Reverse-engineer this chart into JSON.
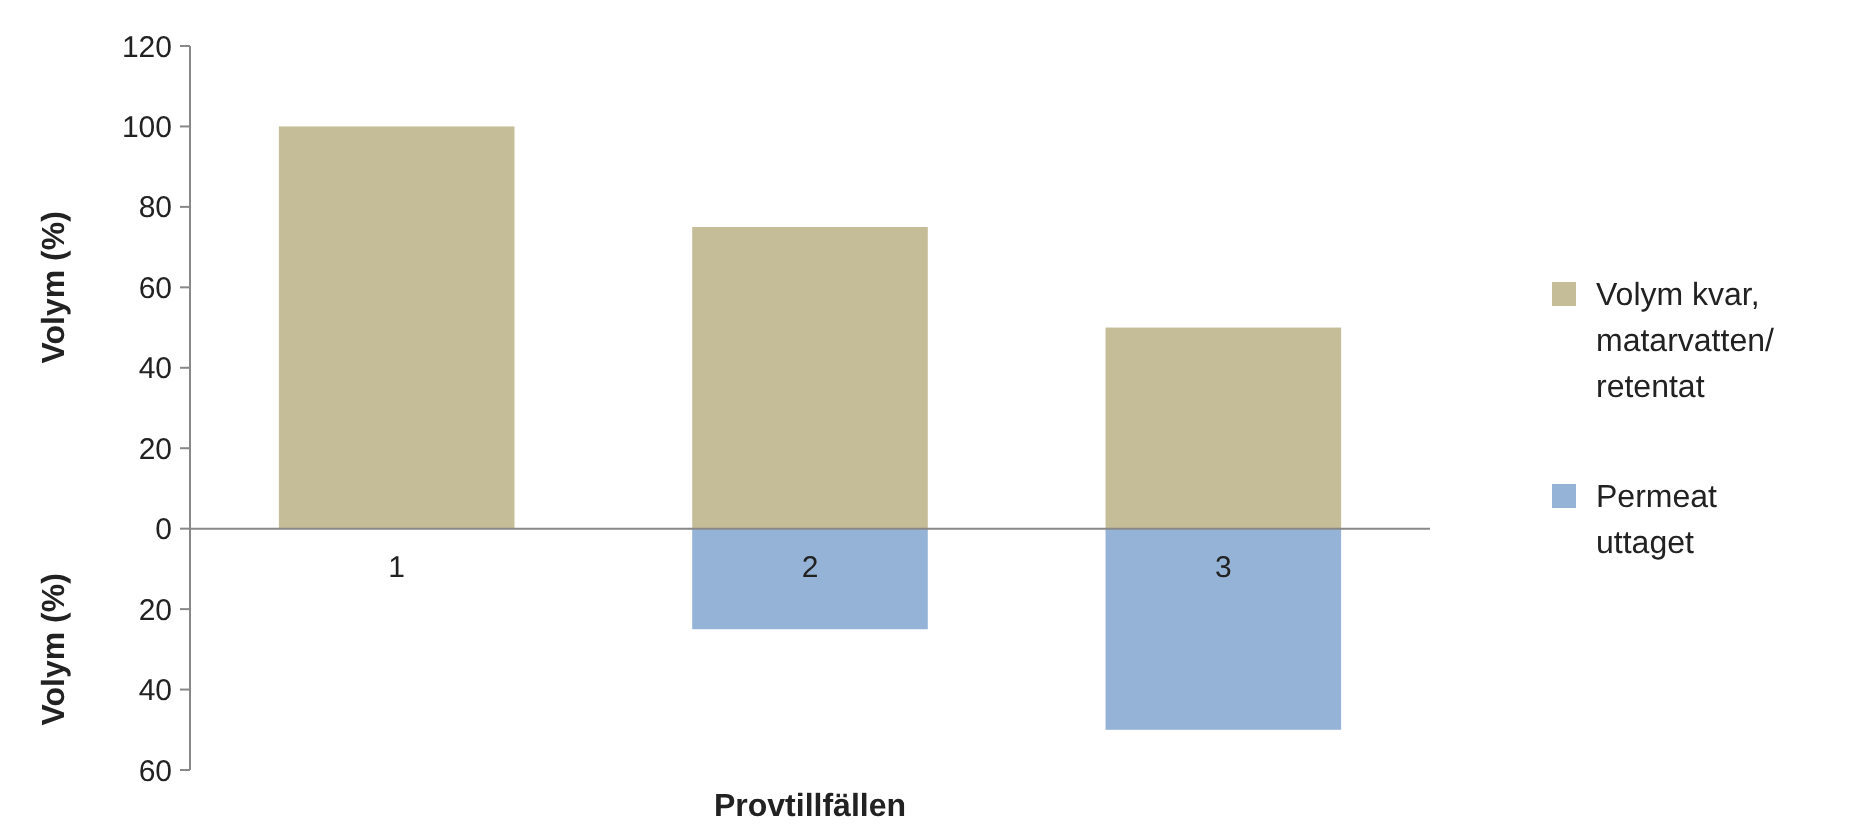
{
  "chart_data": {
    "type": "bar",
    "xlabel": "Provtillfällen",
    "ylabel": "Volym (%)",
    "annotations": [
      "Volym (%)"
    ],
    "categories": [
      "1",
      "2",
      "3"
    ],
    "stacked": true,
    "series": [
      {
        "name": "Volym kvar, matarvatten/retentat",
        "color": "#c4bd97",
        "values": [
          100,
          75,
          50
        ]
      },
      {
        "name": "Permeat uttaget",
        "color": "#95b3d7",
        "values": [
          null,
          -25,
          -50
        ]
      }
    ],
    "ylim": [
      -60,
      120
    ],
    "yticks": [
      {
        "value": -60,
        "label": "60"
      },
      {
        "value": -40,
        "label": "40"
      },
      {
        "value": -20,
        "label": "20"
      },
      0,
      20,
      40,
      60,
      80,
      100,
      120
    ],
    "grid": false,
    "legend": "right"
  }
}
